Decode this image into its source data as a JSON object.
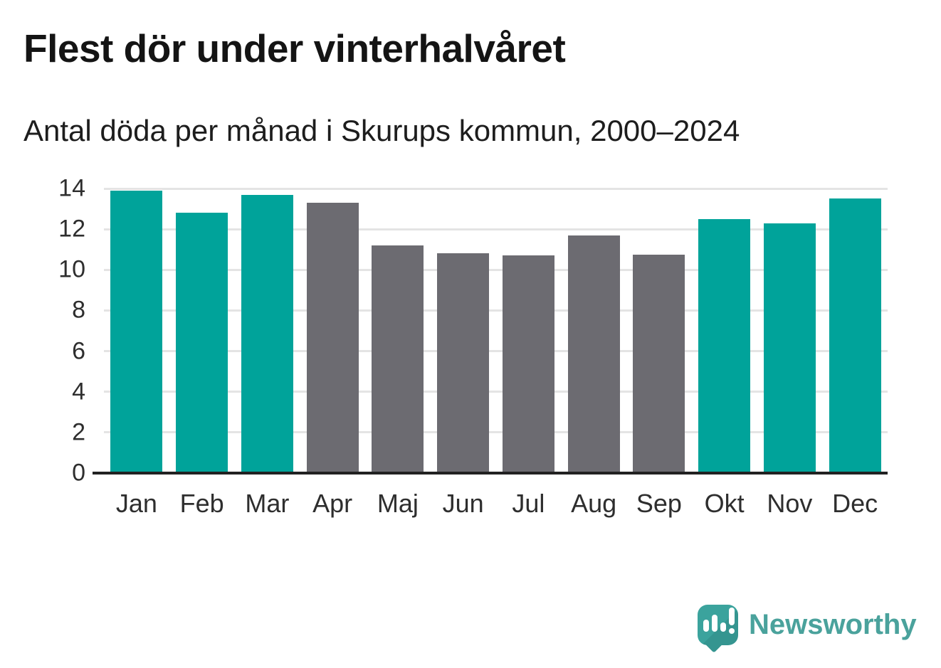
{
  "header": {
    "title": "Flest dör under vinterhalvåret",
    "subtitle": "Antal döda per månad i Skurups kommun, 2000–2024"
  },
  "chart_data": {
    "type": "bar",
    "title": "Flest dör under vinterhalvåret",
    "subtitle": "Antal döda per månad i Skurups kommun, 2000–2024",
    "categories": [
      "Jan",
      "Feb",
      "Mar",
      "Apr",
      "Maj",
      "Jun",
      "Jul",
      "Aug",
      "Sep",
      "Okt",
      "Nov",
      "Dec"
    ],
    "values": [
      13.9,
      12.8,
      13.7,
      13.3,
      11.2,
      10.8,
      10.7,
      11.7,
      10.75,
      12.5,
      12.3,
      13.5
    ],
    "bar_color_keys": [
      "highlight",
      "highlight",
      "highlight",
      "muted",
      "muted",
      "muted",
      "muted",
      "muted",
      "muted",
      "highlight",
      "highlight",
      "highlight"
    ],
    "palette": {
      "highlight": "#00a39a",
      "muted": "#6c6b71"
    },
    "xlabel": "",
    "ylabel": "",
    "ylim": [
      0,
      14
    ],
    "yticks": [
      0,
      2,
      4,
      6,
      8,
      10,
      12,
      14
    ],
    "grid": true,
    "grid_color": "#e4e4e4",
    "axis_color": "#222222",
    "legend": "none"
  },
  "footer": {
    "brand": "Newsworthy",
    "brand_color": "#4aa29c",
    "logo_icon": "speech-bubble-with-bar-chart-and-exclamation",
    "logo_icon_color": "#3ba39d"
  }
}
